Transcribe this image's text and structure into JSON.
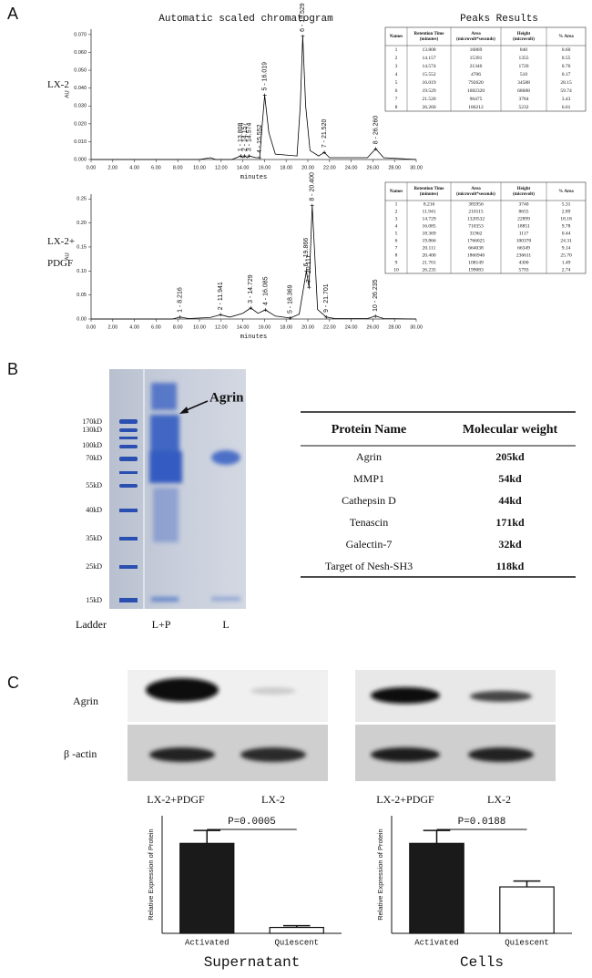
{
  "panel_labels": [
    "A",
    "B",
    "C"
  ],
  "chromatogram_title": "Automatic scaled chromatogram",
  "peaks_title": "Peaks Results",
  "chart_data": [
    {
      "type": "line",
      "side_label": [
        "LX-2"
      ],
      "ylabel": "AU",
      "xlabel": "minutes",
      "xlim": [
        0,
        30
      ],
      "ylim": [
        0,
        0.073
      ],
      "xticks": [
        {
          "value": 0,
          "label": "0.00"
        },
        {
          "value": 2,
          "label": "2.00"
        },
        {
          "value": 4,
          "label": "4.00"
        },
        {
          "value": 6,
          "label": "6.00"
        },
        {
          "value": 8,
          "label": "8.00"
        },
        {
          "value": 10,
          "label": "10.00"
        },
        {
          "value": 12,
          "label": "12.00"
        },
        {
          "value": 14,
          "label": "14.00"
        },
        {
          "value": 16,
          "label": "16.00"
        },
        {
          "value": 18,
          "label": "18.00"
        },
        {
          "value": 20,
          "label": "20.00"
        },
        {
          "value": 22,
          "label": "22.00"
        },
        {
          "value": 24,
          "label": "24.00"
        },
        {
          "value": 26,
          "label": "26.00"
        },
        {
          "value": 28,
          "label": "28.00"
        },
        {
          "value": 30,
          "label": "30.00"
        }
      ],
      "yticks": [
        {
          "value": 0,
          "label": "0.000"
        },
        {
          "value": 0.01,
          "label": "0.010"
        },
        {
          "value": 0.02,
          "label": "0.020"
        },
        {
          "value": 0.03,
          "label": "0.030"
        },
        {
          "value": 0.04,
          "label": "0.040"
        },
        {
          "value": 0.05,
          "label": "0.050"
        },
        {
          "value": 0.06,
          "label": "0.060"
        },
        {
          "value": 0.07,
          "label": "0.070"
        }
      ],
      "color": "#000000",
      "x": [
        0,
        10,
        11,
        11.5,
        13,
        13.808,
        14.0,
        14.157,
        14.4,
        14.574,
        15.2,
        15.552,
        15.8,
        16.019,
        16.4,
        17,
        19,
        19.3,
        19.529,
        19.8,
        20.2,
        21,
        21.52,
        22,
        25.5,
        26.26,
        27,
        30
      ],
      "values": [
        0,
        0,
        0.001,
        0,
        0,
        0.002,
        0.001,
        0.002,
        0.001,
        0.002,
        0.001,
        0.001,
        0.02,
        0.036,
        0.015,
        0.003,
        0.002,
        0.03,
        0.069,
        0.03,
        0.005,
        0.002,
        0.004,
        0.001,
        0.001,
        0.006,
        0.001,
        0
      ],
      "peaks": {
        "x": [
          13.808,
          14.157,
          14.574,
          15.552,
          16.019,
          19.529,
          21.52,
          26.26
        ],
        "values": [
          0.002,
          0.002,
          0.002,
          0.001,
          0.036,
          0.069,
          0.004,
          0.006
        ],
        "labels": [
          "1 - 13.808",
          "2 - 14.157",
          "3 - 14.574",
          "4 - 15.552",
          "5 - 16.019",
          "6 - 19.529",
          "7 - 21.520",
          "8 - 26.260"
        ]
      }
    },
    {
      "type": "line",
      "side_label": [
        "LX-2+",
        "PDGF"
      ],
      "ylabel": "AU",
      "xlabel": "minutes",
      "xlim": [
        0,
        30
      ],
      "ylim": [
        0,
        0.26
      ],
      "xticks": [
        {
          "value": 0,
          "label": "0.00"
        },
        {
          "value": 2,
          "label": "2.00"
        },
        {
          "value": 4,
          "label": "4.00"
        },
        {
          "value": 6,
          "label": "6.00"
        },
        {
          "value": 8,
          "label": "8.00"
        },
        {
          "value": 10,
          "label": "10.00"
        },
        {
          "value": 12,
          "label": "12.00"
        },
        {
          "value": 14,
          "label": "14.00"
        },
        {
          "value": 16,
          "label": "16.00"
        },
        {
          "value": 18,
          "label": "18.00"
        },
        {
          "value": 20,
          "label": "20.00"
        },
        {
          "value": 22,
          "label": "22.00"
        },
        {
          "value": 24,
          "label": "24.00"
        },
        {
          "value": 26,
          "label": "26.00"
        },
        {
          "value": 28,
          "label": "28.00"
        },
        {
          "value": 30,
          "label": "30.00"
        }
      ],
      "yticks": [
        {
          "value": 0,
          "label": "0.00"
        },
        {
          "value": 0.05,
          "label": "0.05"
        },
        {
          "value": 0.1,
          "label": "0.10"
        },
        {
          "value": 0.15,
          "label": "0.15"
        },
        {
          "value": 0.2,
          "label": "0.20"
        },
        {
          "value": 0.25,
          "label": "0.25"
        }
      ],
      "color": "#000000",
      "x": [
        0,
        7.5,
        8.216,
        9,
        11,
        11.941,
        12.8,
        14.0,
        14.729,
        15.4,
        16.085,
        17,
        18.369,
        19.2,
        19.866,
        20.111,
        20.4,
        20.9,
        21.701,
        22.5,
        25.5,
        26.235,
        27,
        30
      ],
      "values": [
        0,
        0,
        0.004,
        0.001,
        0.003,
        0.009,
        0.004,
        0.012,
        0.023,
        0.012,
        0.019,
        0.006,
        0.002,
        0.01,
        0.1,
        0.066,
        0.236,
        0.02,
        0.004,
        0.001,
        0.001,
        0.006,
        0.001,
        0
      ],
      "peaks": {
        "x": [
          8.216,
          11.941,
          14.729,
          16.085,
          18.369,
          19.866,
          20.111,
          20.4,
          21.701,
          26.235
        ],
        "values": [
          0.004,
          0.009,
          0.023,
          0.019,
          0.002,
          0.1,
          0.066,
          0.236,
          0.004,
          0.006
        ],
        "labels": [
          "1 - 8.216",
          "2 - 11.941",
          "3 - 14.729",
          "4 - 16.085",
          "5 - 18.369",
          "6 - 19.866",
          "7 - 20.111",
          "8 - 20.400",
          "9 - 21.701",
          "10 - 26.235"
        ]
      }
    },
    {
      "type": "bar",
      "categories": [
        "Activated",
        "Quiescent"
      ],
      "values": [
        1.53,
        0.1
      ],
      "errors": [
        0.22,
        0.03
      ],
      "colors": [
        "#1a1a1a",
        "#ffffff"
      ],
      "ylim": [
        0,
        2.0
      ],
      "ylabel": "Relative Expression of Protein",
      "xlabel": "Supernatant",
      "annotation": "P=0.0005"
    },
    {
      "type": "bar",
      "categories": [
        "Activated",
        "Quiescent"
      ],
      "values": [
        1.53,
        0.79
      ],
      "errors": [
        0.22,
        0.1
      ],
      "colors": [
        "#1a1a1a",
        "#ffffff"
      ],
      "ylim": [
        0,
        2.0
      ],
      "ylabel": "Relative Expression of Protein",
      "xlabel": "Cells",
      "annotation": "P=0.0188"
    }
  ],
  "peak_tables": [
    {
      "columns": [
        [
          "Names"
        ],
        [
          "Retention Time",
          "(minutes)"
        ],
        [
          "Area",
          "(microvolt*seconds)"
        ],
        [
          "Height",
          "(microvolt)"
        ],
        [
          "% Area"
        ]
      ],
      "rows": [
        [
          "1",
          "13.808",
          "16869",
          "840",
          "0.60"
        ],
        [
          "2",
          "14.157",
          "15391",
          "1355",
          "0.55"
        ],
        [
          "3",
          "14.574",
          "21346",
          "1720",
          "0.76"
        ],
        [
          "4",
          "15.552",
          "4706",
          "510",
          "0.17"
        ],
        [
          "5",
          "16.019",
          "792620",
          "34588",
          "28.15"
        ],
        [
          "6",
          "19.529",
          "1682320",
          "68688",
          "59.74"
        ],
        [
          "7",
          "21.520",
          "96475",
          "3784",
          "3.43"
        ],
        [
          "8",
          "26.260",
          "186212",
          "5232",
          "6.61"
        ]
      ]
    },
    {
      "columns": [
        [
          "Names"
        ],
        [
          "Retention Time",
          "(minutes)"
        ],
        [
          "Area",
          "(microvolt*seconds)"
        ],
        [
          "Height",
          "(microvolt)"
        ],
        [
          "% Area"
        ]
      ],
      "rows": [
        [
          "1",
          "8.216",
          "385956",
          "3740",
          "5.31"
        ],
        [
          "2",
          "11.941",
          "210115",
          "8655",
          "2.89"
        ],
        [
          "3",
          "14.729",
          "1320532",
          "22899",
          "18.18"
        ],
        [
          "4",
          "16.085",
          "710353",
          "18851",
          "9.78"
        ],
        [
          "5",
          "18.369",
          "31962",
          "1117",
          "0.44"
        ],
        [
          "6",
          "19.866",
          "1766025",
          "100370",
          "24.31"
        ],
        [
          "7",
          "20.111",
          "664038",
          "66349",
          "9.14"
        ],
        [
          "8",
          "20.400",
          "1866940",
          "236611",
          "25.70"
        ],
        [
          "9",
          "21.701",
          "108149",
          "4300",
          "1.49"
        ],
        [
          "10",
          "26.235",
          "199083",
          "5793",
          "2.74"
        ]
      ]
    }
  ],
  "gel": {
    "ladder_labels": [
      "170kD",
      "130kD",
      "100kD",
      "70kD",
      "55kD",
      "40kD",
      "35kD",
      "25kD",
      "15kD"
    ],
    "annotation": "Agrin",
    "lane_labels": [
      "Ladder",
      "L+P",
      "L"
    ]
  },
  "protein_table": {
    "columns": [
      "Protein Name",
      "Molecular weight"
    ],
    "rows": [
      [
        "Agrin",
        "205kd"
      ],
      [
        "MMP1",
        "54kd"
      ],
      [
        "Cathepsin D",
        "44kd"
      ],
      [
        "Tenascin",
        "171kd"
      ],
      [
        "Galectin-7",
        "32kd"
      ],
      [
        "Target of Nesh-SH3",
        "118kd"
      ]
    ]
  },
  "blot": {
    "row_labels": [
      "Agrin",
      "β -actin"
    ],
    "lane_labels": [
      [
        "LX-2+PDGF",
        "LX-2"
      ],
      [
        "LX-2+PDGF",
        "LX-2"
      ]
    ]
  }
}
